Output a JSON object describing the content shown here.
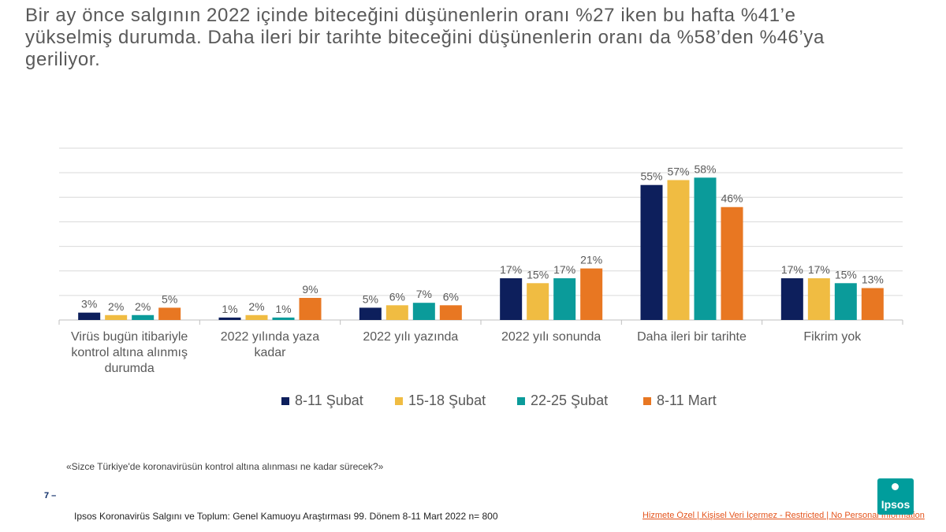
{
  "slide": {
    "title_lines": [
      "Bir ay önce salgının 2022 içinde biteceğini düşünenlerin oranı %27 iken bu hafta %41’e",
      "yükselmiş durumda.  Daha ileri bir tarihte biteceğini düşünenlerin oranı da %58’den %46’ya",
      "geriliyor."
    ],
    "question": "«Sizce Türkiye'de koronavirüsün kontrol altına alınması ne kadar sürecek?»",
    "page_number": "7 –",
    "footer_source": "Ipsos Koronavirüs  Salgını ve Toplum: Genel Kamuoyu Araştırması 99. Dönem  8-11 Mart 2022 n= 800",
    "classification": "Hizmete Özel | Kişisel Veri İçermez - Restricted | No Personal Information",
    "logo_text": "Ipsos"
  },
  "colors": {
    "series": [
      "#0d1f5c",
      "#f0bc42",
      "#0b9b9a",
      "#e87722"
    ],
    "gridline": "#d9d9d9",
    "axis": "#bfbfbf",
    "text": "#595959"
  },
  "chart_data": {
    "type": "bar",
    "title": "",
    "xlabel": "",
    "ylabel": "",
    "ylim": [
      0,
      70
    ],
    "grid": true,
    "legend_position": "bottom",
    "categories": [
      [
        "Virüs bugün itibariyle",
        "kontrol altına alınmış",
        "durumda"
      ],
      [
        "2022 yılında yaza",
        "kadar"
      ],
      [
        "2022 yılı yazında"
      ],
      [
        "2022 yılı sonunda"
      ],
      [
        "Daha ileri bir tarihte"
      ],
      [
        "Fikrim yok"
      ]
    ],
    "series": [
      {
        "name": "8-11 Şubat",
        "values": [
          3,
          1,
          5,
          17,
          55,
          17
        ],
        "labels": [
          "3%",
          "1%",
          "5%",
          "17%",
          "55%",
          "17%"
        ]
      },
      {
        "name": "15-18 Şubat",
        "values": [
          2,
          2,
          6,
          15,
          57,
          17
        ],
        "labels": [
          "2%",
          "2%",
          "6%",
          "15%",
          "57%",
          "17%"
        ]
      },
      {
        "name": "22-25 Şubat",
        "values": [
          2,
          1,
          7,
          17,
          58,
          15
        ],
        "labels": [
          "2%",
          "1%",
          "7%",
          "17%",
          "58%",
          "15%"
        ]
      },
      {
        "name": "8-11 Mart",
        "values": [
          5,
          9,
          6,
          21,
          46,
          13
        ],
        "labels": [
          "5%",
          "9%",
          "6%",
          "21%",
          "46%",
          "13%"
        ]
      }
    ]
  }
}
